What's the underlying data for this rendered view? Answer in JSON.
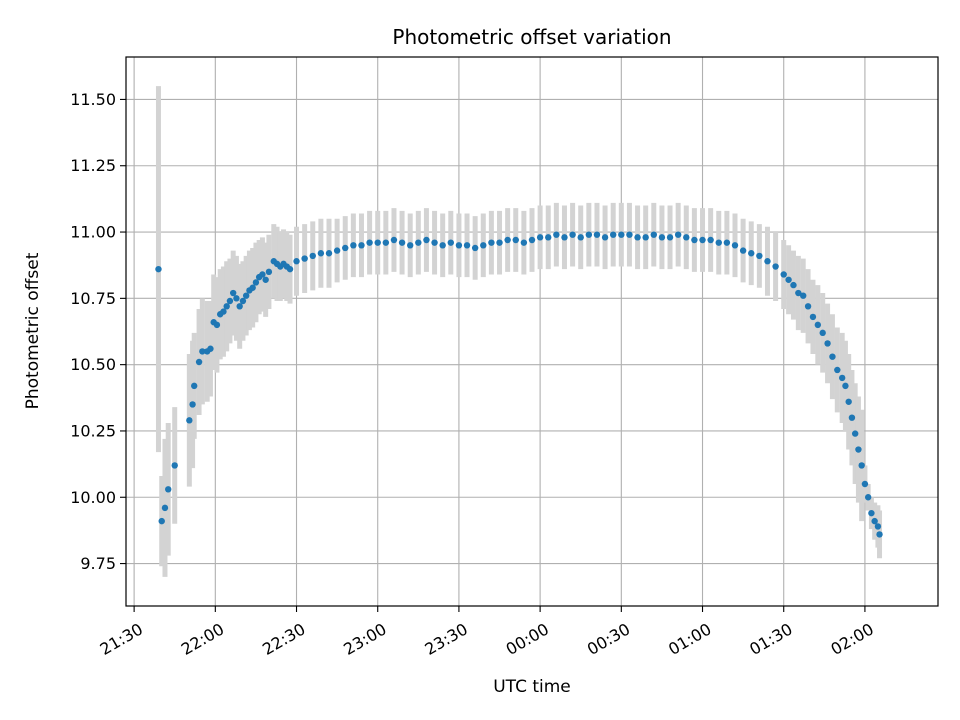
{
  "chart_data": {
    "type": "scatter",
    "title": "Photometric offset variation",
    "xlabel": "UTC time",
    "ylabel": "Photometric offset",
    "x_unit": "hours from 21:00 UTC (values > 3 wrap past midnight)",
    "xlim": [
      0.45,
      5.45
    ],
    "ylim": [
      9.59,
      11.66
    ],
    "grid": true,
    "x_ticks": [
      {
        "value": 0.5,
        "label": "21:30"
      },
      {
        "value": 1.0,
        "label": "22:00"
      },
      {
        "value": 1.5,
        "label": "22:30"
      },
      {
        "value": 2.0,
        "label": "23:00"
      },
      {
        "value": 2.5,
        "label": "23:30"
      },
      {
        "value": 3.0,
        "label": "00:00"
      },
      {
        "value": 3.5,
        "label": "00:30"
      },
      {
        "value": 4.0,
        "label": "01:00"
      },
      {
        "value": 4.5,
        "label": "01:30"
      },
      {
        "value": 5.0,
        "label": "02:00"
      }
    ],
    "y_ticks": [
      {
        "value": 9.75,
        "label": "9.75"
      },
      {
        "value": 10.0,
        "label": "10.00"
      },
      {
        "value": 10.25,
        "label": "10.25"
      },
      {
        "value": 10.5,
        "label": "10.50"
      },
      {
        "value": 10.75,
        "label": "10.75"
      },
      {
        "value": 11.0,
        "label": "11.00"
      },
      {
        "value": 11.25,
        "label": "11.25"
      },
      {
        "value": 11.5,
        "label": "11.50"
      }
    ],
    "colors": {
      "points": "#1f77b4",
      "errorbars": "#d3d3d3",
      "grid": "#b0b0b0"
    },
    "series": [
      {
        "x": [
          0.65,
          0.67,
          0.69,
          0.71,
          0.75,
          0.84,
          0.86,
          0.87,
          0.9,
          0.92,
          0.95,
          0.97,
          0.99,
          1.01,
          1.03,
          1.05,
          1.07,
          1.09,
          1.11,
          1.13,
          1.15,
          1.17,
          1.19,
          1.21,
          1.23,
          1.25,
          1.27,
          1.29,
          1.31,
          1.33,
          1.36,
          1.38,
          1.4,
          1.42,
          1.44,
          1.46,
          1.5,
          1.55,
          1.6,
          1.65,
          1.7,
          1.75,
          1.8,
          1.85,
          1.9,
          1.95,
          2.0,
          2.05,
          2.1,
          2.15,
          2.2,
          2.25,
          2.3,
          2.35,
          2.4,
          2.45,
          2.5,
          2.55,
          2.6,
          2.65,
          2.7,
          2.75,
          2.8,
          2.85,
          2.9,
          2.95,
          3.0,
          3.05,
          3.1,
          3.15,
          3.2,
          3.25,
          3.3,
          3.35,
          3.4,
          3.45,
          3.5,
          3.55,
          3.6,
          3.65,
          3.7,
          3.75,
          3.8,
          3.85,
          3.9,
          3.95,
          4.0,
          4.05,
          4.1,
          4.15,
          4.2,
          4.25,
          4.3,
          4.35,
          4.4,
          4.45,
          4.5,
          4.53,
          4.56,
          4.59,
          4.62,
          4.65,
          4.68,
          4.71,
          4.74,
          4.77,
          4.8,
          4.83,
          4.86,
          4.88,
          4.9,
          4.92,
          4.94,
          4.96,
          4.98,
          5.0,
          5.02,
          5.04,
          5.06,
          5.08,
          5.09
        ],
        "y": [
          10.86,
          9.91,
          9.96,
          10.03,
          10.12,
          10.29,
          10.35,
          10.42,
          10.51,
          10.55,
          10.55,
          10.56,
          10.66,
          10.65,
          10.69,
          10.7,
          10.72,
          10.74,
          10.77,
          10.75,
          10.72,
          10.74,
          10.76,
          10.78,
          10.79,
          10.81,
          10.83,
          10.84,
          10.82,
          10.85,
          10.89,
          10.88,
          10.87,
          10.88,
          10.87,
          10.86,
          10.89,
          10.9,
          10.91,
          10.92,
          10.92,
          10.93,
          10.94,
          10.95,
          10.95,
          10.96,
          10.96,
          10.96,
          10.97,
          10.96,
          10.95,
          10.96,
          10.97,
          10.96,
          10.95,
          10.96,
          10.95,
          10.95,
          10.94,
          10.95,
          10.96,
          10.96,
          10.97,
          10.97,
          10.96,
          10.97,
          10.98,
          10.98,
          10.99,
          10.98,
          10.99,
          10.98,
          10.99,
          10.99,
          10.98,
          10.99,
          10.99,
          10.99,
          10.98,
          10.98,
          10.99,
          10.98,
          10.98,
          10.99,
          10.98,
          10.97,
          10.97,
          10.97,
          10.96,
          10.96,
          10.95,
          10.93,
          10.92,
          10.91,
          10.89,
          10.87,
          10.84,
          10.82,
          10.8,
          10.77,
          10.76,
          10.72,
          10.68,
          10.65,
          10.62,
          10.58,
          10.53,
          10.48,
          10.45,
          10.42,
          10.36,
          10.3,
          10.24,
          10.18,
          10.12,
          10.05,
          10.0,
          9.94,
          9.91,
          9.89,
          9.86
        ],
        "err": [
          0.69,
          0.17,
          0.26,
          0.25,
          0.22,
          0.25,
          0.24,
          0.2,
          0.2,
          0.2,
          0.19,
          0.18,
          0.18,
          0.18,
          0.17,
          0.17,
          0.17,
          0.16,
          0.16,
          0.16,
          0.16,
          0.15,
          0.15,
          0.15,
          0.15,
          0.15,
          0.14,
          0.14,
          0.14,
          0.14,
          0.14,
          0.14,
          0.13,
          0.13,
          0.13,
          0.13,
          0.13,
          0.13,
          0.13,
          0.13,
          0.13,
          0.12,
          0.12,
          0.12,
          0.12,
          0.12,
          0.12,
          0.12,
          0.12,
          0.12,
          0.12,
          0.12,
          0.12,
          0.12,
          0.12,
          0.12,
          0.12,
          0.12,
          0.12,
          0.12,
          0.12,
          0.12,
          0.12,
          0.12,
          0.12,
          0.12,
          0.12,
          0.12,
          0.12,
          0.12,
          0.12,
          0.12,
          0.12,
          0.12,
          0.12,
          0.12,
          0.12,
          0.12,
          0.12,
          0.12,
          0.12,
          0.12,
          0.12,
          0.12,
          0.12,
          0.12,
          0.12,
          0.12,
          0.12,
          0.12,
          0.12,
          0.12,
          0.12,
          0.12,
          0.13,
          0.13,
          0.13,
          0.13,
          0.13,
          0.14,
          0.14,
          0.14,
          0.14,
          0.15,
          0.15,
          0.15,
          0.16,
          0.16,
          0.17,
          0.17,
          0.18,
          0.18,
          0.19,
          0.2,
          0.21,
          0.07,
          0.05,
          0.06,
          0.07,
          0.08,
          0.09
        ]
      }
    ]
  }
}
